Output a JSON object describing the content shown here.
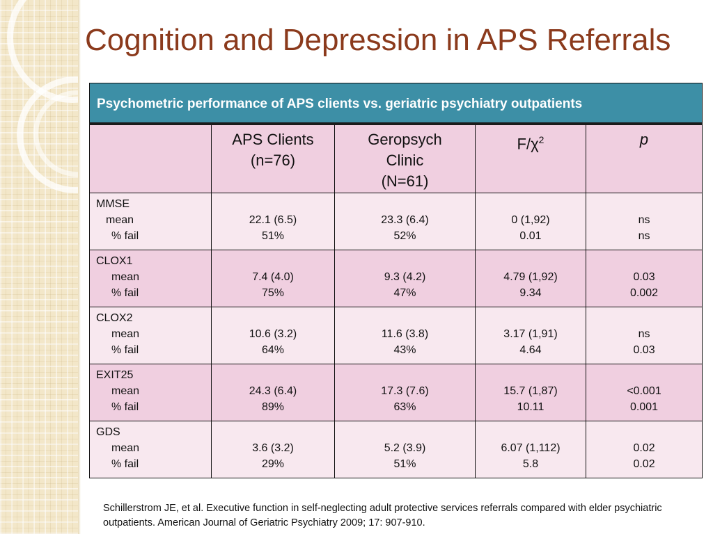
{
  "title": "Cognition and Depression in APS Referrals",
  "table": {
    "caption": "Psychometric performance of APS clients vs. geriatric psychiatry outpatients",
    "headers": {
      "col0": "",
      "col1_line1": "APS Clients",
      "col1_line2": "(n=76)",
      "col2_line1": "Geropsych",
      "col2_line2": "Clinic",
      "col2_line3": "(N=61)",
      "col3": "F/χ",
      "col3_sup": "2",
      "col4": "p"
    },
    "rows": [
      {
        "measure": "MMSE",
        "sub1": "mean",
        "sub2": "% fail",
        "aps1": "22.1 (6.5)",
        "aps2": "51%",
        "geo1": "23.3 (6.4)",
        "geo2": "52%",
        "f1": "0 (1,92)",
        "f2": "0.01",
        "p1": "ns",
        "p2": "ns"
      },
      {
        "measure": "CLOX1",
        "sub1": "mean",
        "sub2": "% fail",
        "aps1": "7.4 (4.0)",
        "aps2": "75%",
        "geo1": "9.3 (4.2)",
        "geo2": "47%",
        "f1": "4.79 (1,92)",
        "f2": "9.34",
        "p1": "0.03",
        "p2": "0.002"
      },
      {
        "measure": "CLOX2",
        "sub1": "mean",
        "sub2": "% fail",
        "aps1": "10.6 (3.2)",
        "aps2": "64%",
        "geo1": "11.6 (3.8)",
        "geo2": "43%",
        "f1": "3.17 (1,91)",
        "f2": "4.64",
        "p1": "ns",
        "p2": "0.03"
      },
      {
        "measure": "EXIT25",
        "sub1": "mean",
        "sub2": "% fail",
        "aps1": "24.3 (6.4)",
        "aps2": "89%",
        "geo1": "17.3 (7.6)",
        "geo2": "63%",
        "f1": "15.7 (1,87)",
        "f2": "10.11",
        "p1": "<0.001",
        "p2": "0.001"
      },
      {
        "measure": "GDS",
        "sub1": "mean",
        "sub2": "% fail",
        "aps1": "3.6 (3.2)",
        "aps2": "29%",
        "geo1": "5.2 (3.9)",
        "geo2": "51%",
        "f1": "6.07 (1,112)",
        "f2": "5.8",
        "p1": "0.02",
        "p2": "0.02"
      }
    ]
  },
  "citation": "Schillerstrom JE, et al. Executive function in self-neglecting adult protective services referrals compared with elder psychiatric outpatients.  American Journal of Geriatric Psychiatry 2009; 17: 907-910.",
  "colors": {
    "title": "#8b3a1c",
    "caption_bg": "#3d8fa6",
    "row_light": "#f8e8ef",
    "row_dark": "#f0cfe0",
    "left_band": "#f3e7c9"
  }
}
